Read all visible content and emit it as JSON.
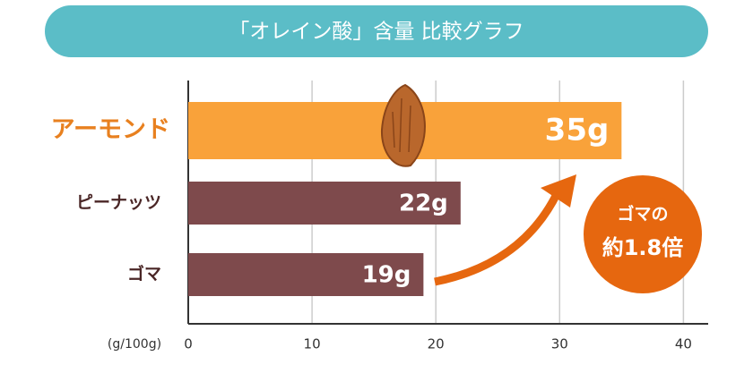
{
  "chart_data": {
    "type": "hbar",
    "title": "「オレイン酸」含量 比較グラフ",
    "categories": [
      "アーモンド",
      "ピーナッツ",
      "ゴマ"
    ],
    "values": [
      35,
      22,
      19
    ],
    "value_labels": [
      "35g",
      "22g",
      "19g"
    ],
    "colors": [
      "#f9a23a",
      "#7e4a4c",
      "#7e4a4c"
    ],
    "x_label": "(g/100g)",
    "xlim": [
      0,
      42
    ],
    "xticks": [
      0,
      10,
      20,
      30,
      40
    ],
    "grid": true,
    "annotations": [
      "ゴマの",
      "約1.8倍"
    ]
  }
}
